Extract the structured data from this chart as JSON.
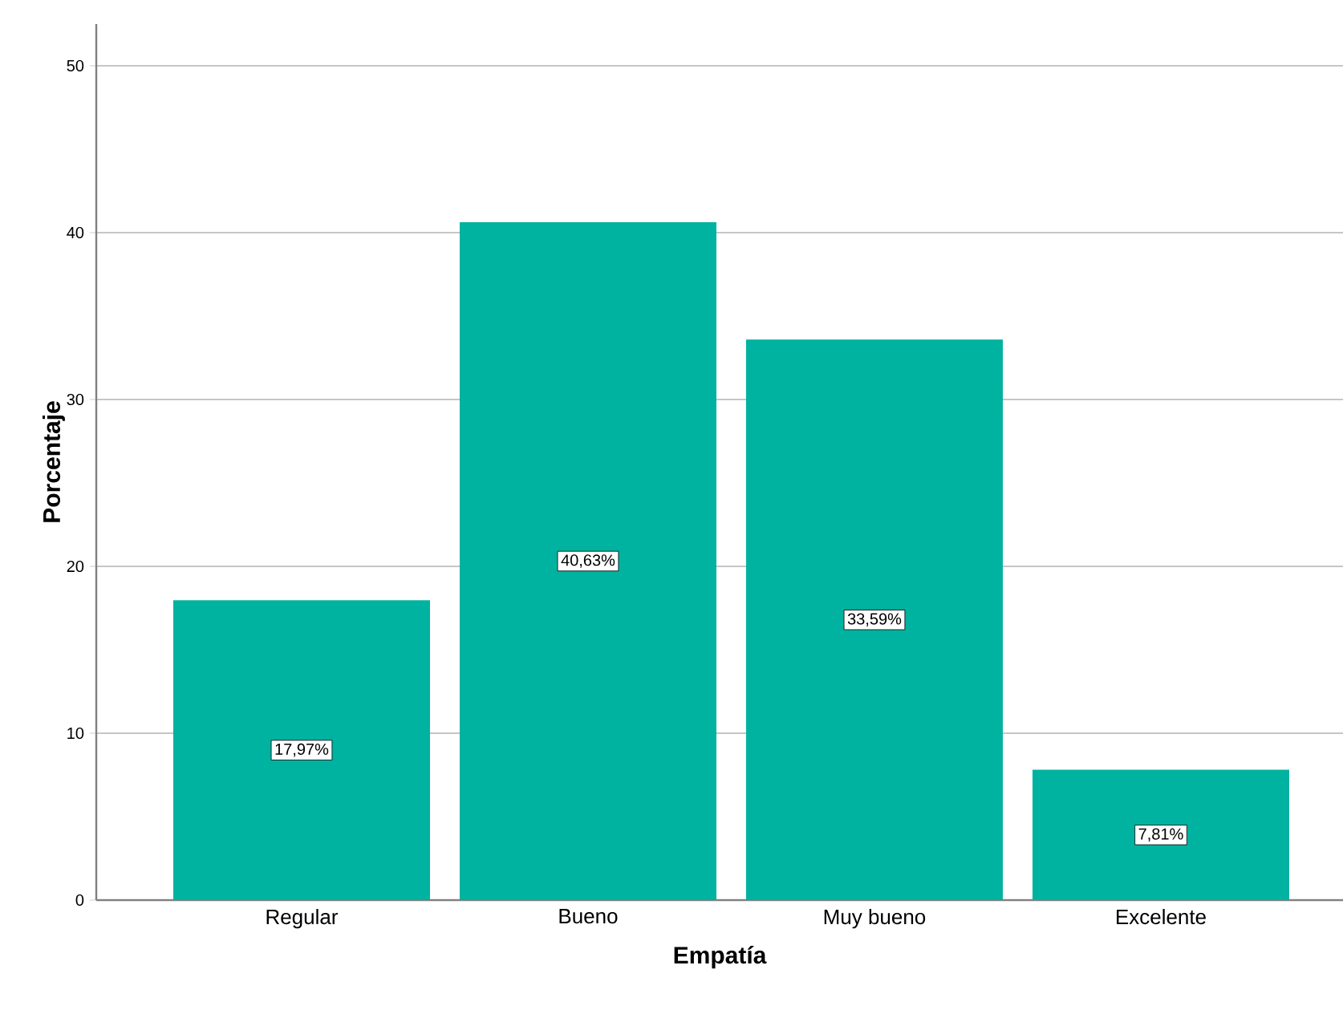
{
  "chart_data": {
    "type": "bar",
    "xlabel": "Empatía",
    "ylabel": "Porcentaje",
    "categories": [
      "Regular",
      "Bueno",
      "Muy bueno",
      "Excelente"
    ],
    "values": [
      17.97,
      40.63,
      33.59,
      7.81
    ],
    "value_labels": [
      "17,97%",
      "40,63%",
      "33,59%",
      "7,81%"
    ],
    "color": "#00b2a0",
    "ylim": [
      0,
      52.5
    ],
    "yticks": [
      0,
      10,
      20,
      30,
      40,
      50
    ],
    "grid": "y"
  }
}
